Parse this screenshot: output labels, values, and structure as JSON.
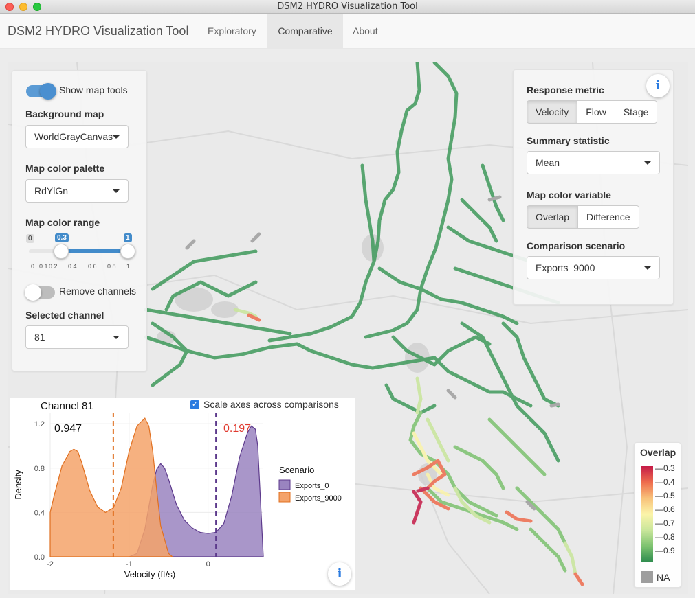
{
  "window": {
    "title": "DSM2 HYDRO Visualization Tool"
  },
  "navbar": {
    "brand": "DSM2 HYDRO Visualization Tool",
    "tabs": [
      {
        "label": "Exploratory",
        "active": false
      },
      {
        "label": "Comparative",
        "active": true
      },
      {
        "label": "About",
        "active": false
      }
    ]
  },
  "left_panel": {
    "show_map_tools_label": "Show map tools",
    "show_map_tools_on": true,
    "background_map_label": "Background map",
    "background_map_value": "WorldGrayCanvas",
    "palette_label": "Map color palette",
    "palette_value": "RdYlGn",
    "color_range_label": "Map color range",
    "color_range": {
      "min": "0",
      "max": "1",
      "from": "0.3",
      "to": "1",
      "ticks": [
        "0",
        "0.1",
        "0.2",
        "0.4",
        "0.6",
        "0.8",
        "1"
      ]
    },
    "remove_channels_label": "Remove channels",
    "remove_channels_on": false,
    "selected_channel_label": "Selected channel",
    "selected_channel_value": "81"
  },
  "right_panel": {
    "response_metric_label": "Response metric",
    "response_metric_options": [
      "Velocity",
      "Flow",
      "Stage"
    ],
    "response_metric_selected": "Velocity",
    "summary_stat_label": "Summary statistic",
    "summary_stat_value": "Mean",
    "color_variable_label": "Map color variable",
    "color_variable_options": [
      "Overlap",
      "Difference"
    ],
    "color_variable_selected": "Overlap",
    "comparison_label": "Comparison scenario",
    "comparison_value": "Exports_9000",
    "info_glyph": "i"
  },
  "legend": {
    "title": "Overlap",
    "ticks": [
      "0.3",
      "0.4",
      "0.5",
      "0.6",
      "0.7",
      "0.8",
      "0.9"
    ],
    "na_label": "NA",
    "colors": [
      "#c51b47",
      "#ee6c4d",
      "#f8c27a",
      "#fbf4a9",
      "#c9e69b",
      "#7cc26f",
      "#2d8b4e"
    ]
  },
  "plot_panel": {
    "title": "Channel 81",
    "scale_axes_label": "Scale axes across comparisons",
    "scale_axes_checked": true,
    "info_glyph": "i"
  },
  "chart_data": {
    "type": "area",
    "title": "Channel 81",
    "xlabel": "Velocity (ft/s)",
    "ylabel": "Density",
    "xlim": [
      -2,
      0.7
    ],
    "ylim": [
      0,
      1.3
    ],
    "x_ticks": [
      -2,
      -1,
      0
    ],
    "y_ticks": [
      0.0,
      0.4,
      0.8,
      1.2
    ],
    "legend_title": "Scenario",
    "legend_position": "right",
    "grid": true,
    "series": [
      {
        "name": "Exports_0",
        "color": "#9a84c0",
        "line": "#5d3a8c",
        "mean": 0.1,
        "overlap_label": "0.197",
        "x": [
          -1.0,
          -0.9,
          -0.8,
          -0.7,
          -0.65,
          -0.6,
          -0.55,
          -0.5,
          -0.4,
          -0.3,
          -0.2,
          -0.1,
          0.0,
          0.1,
          0.2,
          0.3,
          0.4,
          0.5,
          0.55,
          0.6,
          0.63,
          0.7
        ],
        "y": [
          0.0,
          0.03,
          0.25,
          0.65,
          0.79,
          0.84,
          0.8,
          0.7,
          0.47,
          0.33,
          0.26,
          0.22,
          0.21,
          0.22,
          0.3,
          0.55,
          0.9,
          1.12,
          1.18,
          1.15,
          1.0,
          0.0
        ]
      },
      {
        "name": "Exports_9000",
        "color": "#f4a36a",
        "line": "#e06f1f",
        "mean": -1.2,
        "overlap_label": "0.947",
        "x": [
          -2.0,
          -1.95,
          -1.85,
          -1.75,
          -1.7,
          -1.65,
          -1.6,
          -1.5,
          -1.4,
          -1.3,
          -1.2,
          -1.1,
          -1.0,
          -0.9,
          -0.8,
          -0.75,
          -0.7,
          -0.65,
          -0.6,
          -0.5,
          -0.45
        ],
        "y": [
          0.4,
          0.55,
          0.82,
          0.95,
          0.97,
          0.95,
          0.85,
          0.6,
          0.45,
          0.4,
          0.44,
          0.62,
          0.95,
          1.18,
          1.25,
          1.18,
          0.95,
          0.6,
          0.28,
          0.03,
          0.0
        ]
      }
    ]
  }
}
